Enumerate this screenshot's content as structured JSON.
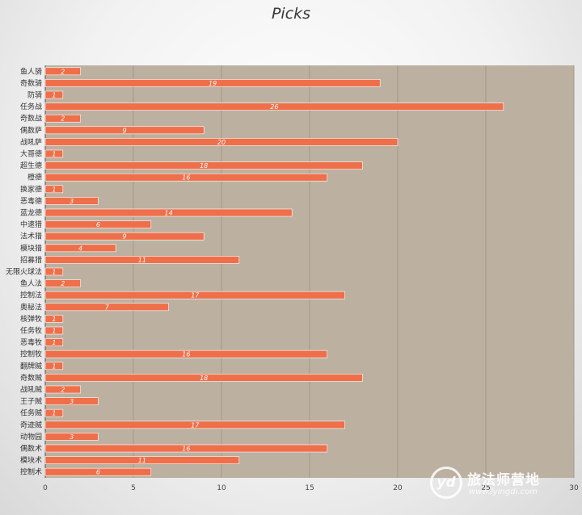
{
  "chart_data": {
    "type": "bar",
    "orientation": "horizontal",
    "title": "Picks",
    "xlabel": "",
    "ylabel": "",
    "xlim": [
      0,
      30
    ],
    "xticks": [
      0,
      5,
      10,
      15,
      20,
      25,
      30
    ],
    "grid": true,
    "legend": "none",
    "categories": [
      "鱼人骑",
      "奇数骑",
      "防骑",
      "任务战",
      "奇数战",
      "偶数萨",
      "战吼萨",
      "大哥德",
      "超生德",
      "橙德",
      "换家德",
      "恶毒德",
      "蓝龙德",
      "中速猎",
      "法术猎",
      "模块猎",
      "招募猎",
      "无限火球法",
      "鱼人法",
      "控制法",
      "奥秘法",
      "核弹牧",
      "任务牧",
      "恶毒牧",
      "控制牧",
      "翻牌贼",
      "奇数贼",
      "战吼贼",
      "王子贼",
      "任务贼",
      "奇迹贼",
      "动物园",
      "偶数术",
      "模块术",
      "控制术"
    ],
    "values": [
      2,
      19,
      1,
      26,
      2,
      9,
      20,
      1,
      18,
      16,
      1,
      3,
      14,
      6,
      9,
      4,
      11,
      1,
      2,
      17,
      7,
      1,
      1,
      1,
      16,
      1,
      18,
      2,
      3,
      1,
      17,
      3,
      16,
      11,
      6
    ],
    "colors": {
      "bar": "#ef6f4a",
      "plot_bg": "#bcb0a1",
      "grid": "#a4988a"
    }
  },
  "watermark": {
    "logo_text": "yd",
    "name": "旅法师营地",
    "url": "www.lyingdi.com"
  }
}
